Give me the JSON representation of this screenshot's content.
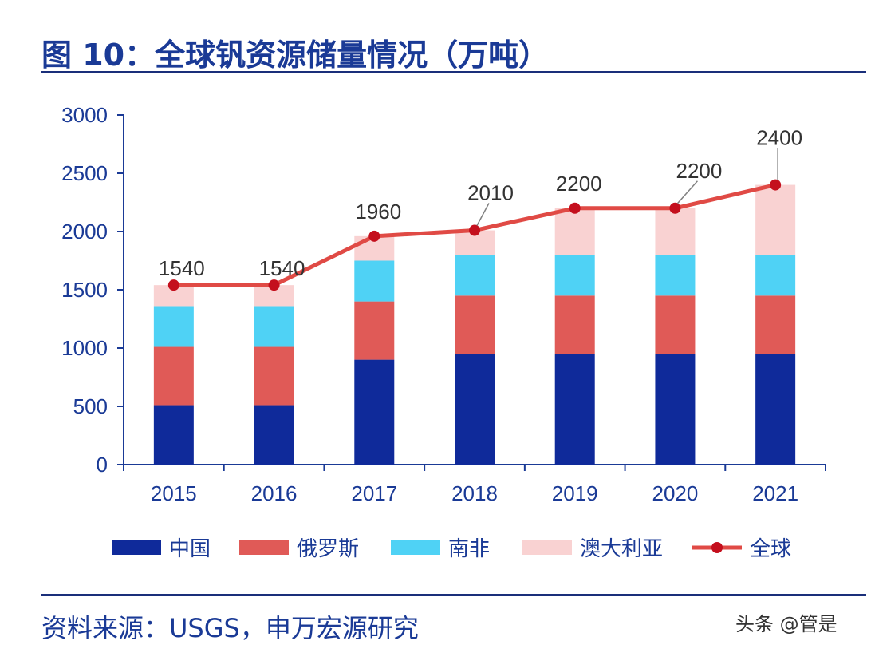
{
  "title": "图 10：全球钒资源储量情况（万吨）",
  "source": "资料来源：USGS，申万宏源研究",
  "watermark": "头条 @管是",
  "chart_data": {
    "type": "bar",
    "stacked": true,
    "categories": [
      "2015",
      "2016",
      "2017",
      "2018",
      "2019",
      "2020",
      "2021"
    ],
    "series": [
      {
        "name": "中国",
        "type": "bar",
        "color": "#0f2a9a",
        "values": [
          510,
          510,
          900,
          950,
          950,
          950,
          950
        ]
      },
      {
        "name": "俄罗斯",
        "type": "bar",
        "color": "#e05a57",
        "values": [
          500,
          500,
          500,
          500,
          500,
          500,
          500
        ]
      },
      {
        "name": "南非",
        "type": "bar",
        "color": "#4fd2f5",
        "values": [
          350,
          350,
          350,
          350,
          350,
          350,
          350
        ]
      },
      {
        "name": "澳大利亚",
        "type": "bar",
        "color": "#f9d2d2",
        "values": [
          180,
          180,
          210,
          210,
          400,
          400,
          600
        ]
      },
      {
        "name": "全球",
        "type": "line",
        "color": "#e04a45",
        "marker_color": "#c40f1d",
        "values": [
          1540,
          1540,
          1960,
          2010,
          2200,
          2200,
          2400
        ]
      }
    ],
    "data_labels": [
      "1540",
      "1540",
      "1960",
      "2010",
      "2200",
      "2200",
      "2400"
    ],
    "yticks": [
      "0",
      "500",
      "1000",
      "1500",
      "2000",
      "2500",
      "3000"
    ],
    "ylim": [
      0,
      3000
    ],
    "xlabel": "",
    "ylabel": "",
    "legend_position": "bottom",
    "grid": false
  }
}
